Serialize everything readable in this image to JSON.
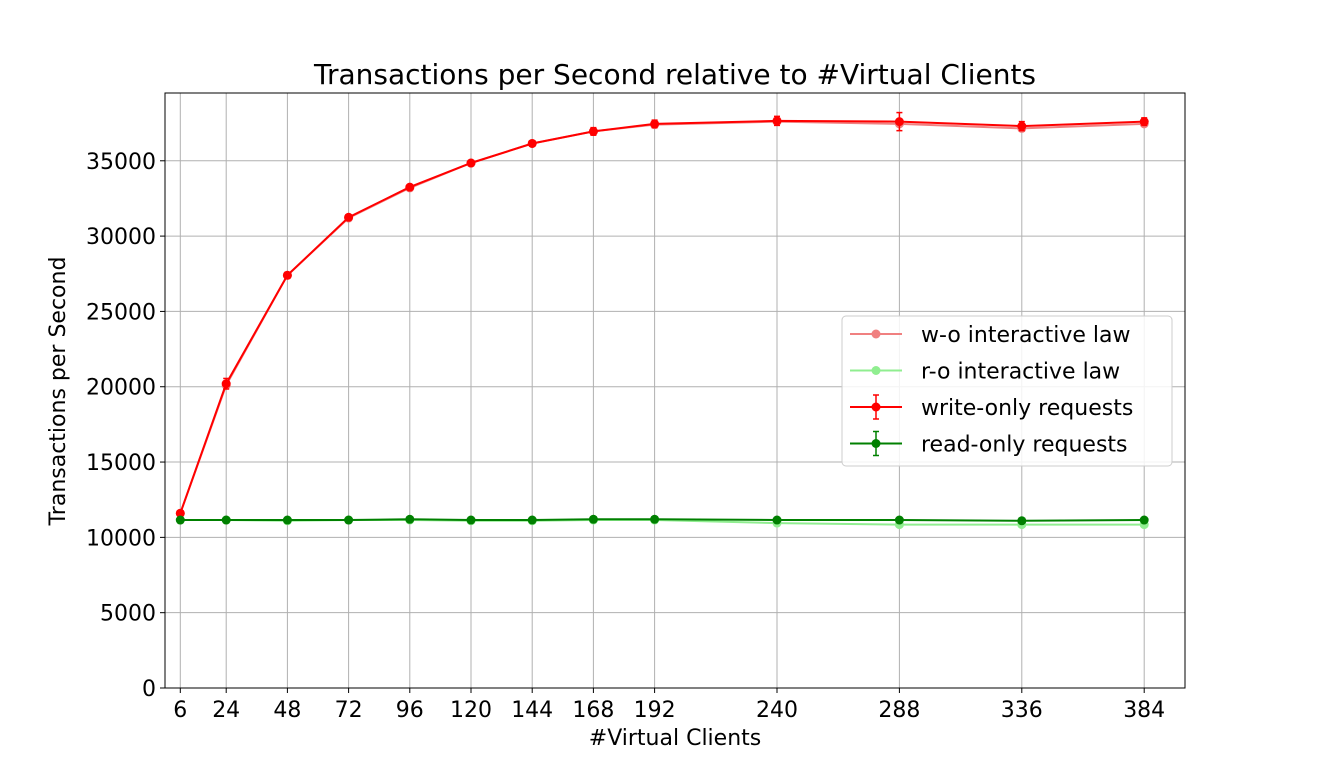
{
  "chart_data": {
    "type": "line",
    "title": "Transactions per Second relative to #Virtual Clients",
    "xlabel": "#Virtual Clients",
    "ylabel": "Transactions per Second",
    "x": [
      6,
      24,
      48,
      72,
      96,
      120,
      144,
      168,
      192,
      240,
      288,
      336,
      384
    ],
    "xticks": [
      6,
      24,
      48,
      72,
      96,
      120,
      144,
      168,
      192,
      240,
      288,
      336,
      384
    ],
    "yticks": [
      0,
      5000,
      10000,
      15000,
      20000,
      25000,
      30000,
      35000
    ],
    "xlim": [
      0,
      400
    ],
    "ylim": [
      0,
      39500
    ],
    "grid": true,
    "legend_position": "center-right",
    "series": [
      {
        "name": "w-o interactive law",
        "color": "#f08080",
        "values": [
          11600,
          20100,
          27400,
          31200,
          33200,
          34850,
          36150,
          36950,
          37400,
          37600,
          37450,
          37150,
          37450
        ]
      },
      {
        "name": "r-o interactive law",
        "color": "#90ee90",
        "values": [
          11150,
          11150,
          11100,
          11150,
          11150,
          11100,
          11100,
          11150,
          11150,
          10950,
          10850,
          10850,
          10850
        ]
      },
      {
        "name": "write-only requests",
        "color": "#ff0000",
        "values": [
          11600,
          20200,
          27400,
          31250,
          33250,
          34850,
          36150,
          36950,
          37450,
          37650,
          37600,
          37300,
          37600
        ],
        "errors": [
          150,
          350,
          200,
          150,
          150,
          100,
          150,
          250,
          250,
          300,
          600,
          300,
          250
        ]
      },
      {
        "name": "read-only requests",
        "color": "#008000",
        "values": [
          11150,
          11150,
          11150,
          11150,
          11200,
          11150,
          11150,
          11200,
          11200,
          11150,
          11150,
          11100,
          11150
        ],
        "errors": [
          100,
          100,
          100,
          100,
          100,
          100,
          100,
          100,
          100,
          120,
          100,
          100,
          100
        ]
      }
    ]
  }
}
